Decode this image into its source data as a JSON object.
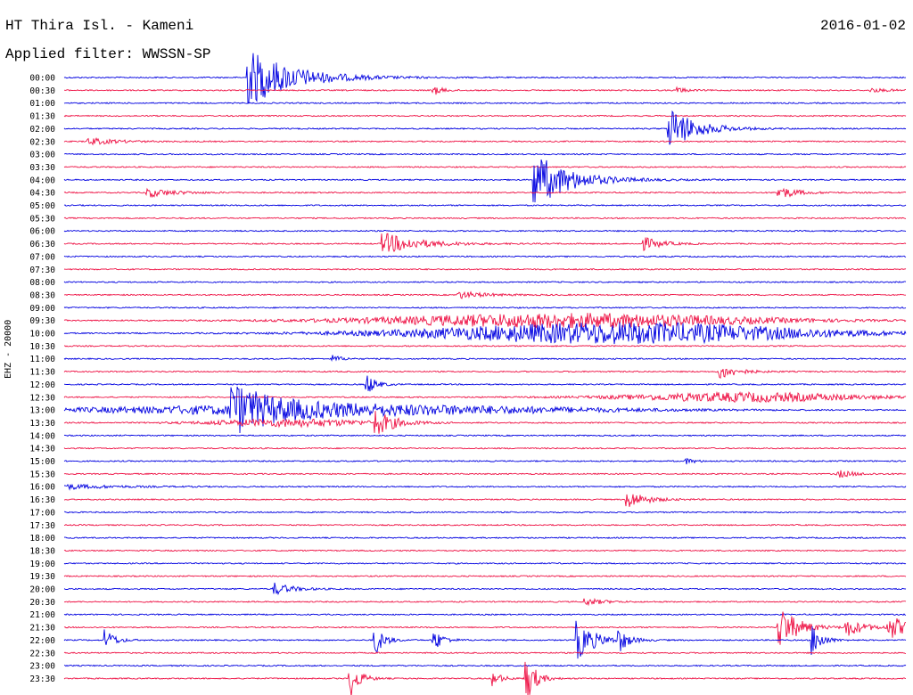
{
  "header": {
    "title": "HT Thira Isl. - Kameni",
    "filter": "Applied filter: WWSSN-SP",
    "date": "2016-01-02"
  },
  "colors": {
    "odd": "#0000e0",
    "even": "#ee1144",
    "text": "#000000"
  },
  "chart_data": {
    "type": "line",
    "title": "HT Thira Isl. - Kameni",
    "subtitle": "Applied filter: WWSSN-SP",
    "date": "2016-01-02",
    "ylabel": "EHZ - 20000",
    "rows": [
      "00:00",
      "00:30",
      "01:00",
      "01:30",
      "02:00",
      "02:30",
      "03:00",
      "03:30",
      "04:00",
      "04:30",
      "05:00",
      "05:30",
      "06:00",
      "06:30",
      "07:00",
      "07:30",
      "08:00",
      "08:30",
      "09:00",
      "09:30",
      "10:00",
      "10:30",
      "11:00",
      "11:30",
      "12:00",
      "12:30",
      "13:00",
      "13:30",
      "14:00",
      "14:30",
      "15:00",
      "15:30",
      "16:00",
      "16:30",
      "17:00",
      "17:30",
      "18:00",
      "18:30",
      "19:00",
      "19:30",
      "20:00",
      "20:30",
      "21:00",
      "21:30",
      "22:00",
      "22:30",
      "23:00",
      "23:30"
    ],
    "x_range_minutes": [
      0,
      30
    ],
    "events": [
      {
        "row": 0,
        "t": 0.22,
        "amp": 32,
        "len": 0.05
      },
      {
        "row": 1,
        "t": 0.44,
        "amp": 5,
        "len": 0.01
      },
      {
        "row": 1,
        "t": 0.73,
        "amp": 3,
        "len": 0.01
      },
      {
        "row": 1,
        "t": 0.96,
        "amp": 2,
        "len": 0.02
      },
      {
        "row": 4,
        "t": 0.72,
        "amp": 24,
        "len": 0.03
      },
      {
        "row": 5,
        "t": 0.03,
        "amp": 4,
        "len": 0.03
      },
      {
        "row": 8,
        "t": 0.56,
        "amp": 30,
        "len": 0.04
      },
      {
        "row": 9,
        "t": 0.1,
        "amp": 5,
        "len": 0.03
      },
      {
        "row": 9,
        "t": 0.85,
        "amp": 7,
        "len": 0.02
      },
      {
        "row": 13,
        "t": 0.38,
        "amp": 12,
        "len": 0.04
      },
      {
        "row": 13,
        "t": 0.69,
        "amp": 7,
        "len": 0.02
      },
      {
        "row": 17,
        "t": 0.47,
        "amp": 4,
        "len": 0.03
      },
      {
        "row": 19,
        "t": 0.35,
        "amp": 8,
        "len": 0.5
      },
      {
        "row": 20,
        "t": 0.4,
        "amp": 12,
        "len": 0.52
      },
      {
        "row": 22,
        "t": 0.32,
        "amp": 4,
        "len": 0.01
      },
      {
        "row": 23,
        "t": 0.78,
        "amp": 8,
        "len": 0.02
      },
      {
        "row": 24,
        "t": 0.36,
        "amp": 12,
        "len": 0.01
      },
      {
        "row": 25,
        "t": 0.65,
        "amp": 5,
        "len": 0.32
      },
      {
        "row": 26,
        "t": 0.0,
        "amp": 6,
        "len": 0.65
      },
      {
        "row": 26,
        "t": 0.2,
        "amp": 26,
        "len": 0.05
      },
      {
        "row": 27,
        "t": 0.16,
        "amp": 4,
        "len": 0.22
      },
      {
        "row": 27,
        "t": 0.37,
        "amp": 14,
        "len": 0.02
      },
      {
        "row": 30,
        "t": 0.74,
        "amp": 3,
        "len": 0.01
      },
      {
        "row": 31,
        "t": 0.92,
        "amp": 4,
        "len": 0.02
      },
      {
        "row": 32,
        "t": 0.0,
        "amp": 3,
        "len": 0.05
      },
      {
        "row": 33,
        "t": 0.67,
        "amp": 10,
        "len": 0.02
      },
      {
        "row": 40,
        "t": 0.25,
        "amp": 7,
        "len": 0.02
      },
      {
        "row": 41,
        "t": 0.62,
        "amp": 4,
        "len": 0.02
      },
      {
        "row": 43,
        "t": 0.85,
        "amp": 25,
        "len": 0.02
      },
      {
        "row": 43,
        "t": 0.93,
        "amp": 10,
        "len": 0.02
      },
      {
        "row": 43,
        "t": 0.98,
        "amp": 14,
        "len": 0.02
      },
      {
        "row": 44,
        "t": 0.05,
        "amp": 12,
        "len": 0.01
      },
      {
        "row": 44,
        "t": 0.37,
        "amp": 16,
        "len": 0.01
      },
      {
        "row": 44,
        "t": 0.44,
        "amp": 12,
        "len": 0.01
      },
      {
        "row": 44,
        "t": 0.61,
        "amp": 22,
        "len": 0.02
      },
      {
        "row": 44,
        "t": 0.66,
        "amp": 12,
        "len": 0.01
      },
      {
        "row": 44,
        "t": 0.89,
        "amp": 18,
        "len": 0.01
      },
      {
        "row": 47,
        "t": 0.34,
        "amp": 22,
        "len": 0.01
      },
      {
        "row": 47,
        "t": 0.51,
        "amp": 8,
        "len": 0.01
      },
      {
        "row": 47,
        "t": 0.55,
        "amp": 26,
        "len": 0.01
      }
    ]
  }
}
